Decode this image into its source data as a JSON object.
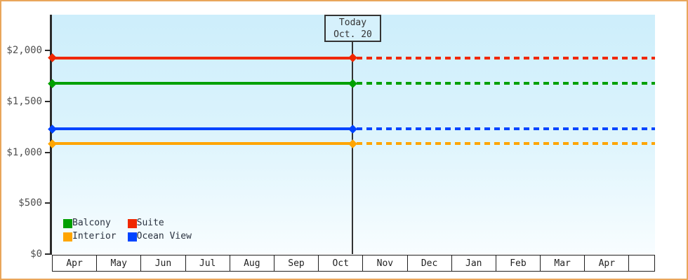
{
  "colors": {
    "frame_border": "#e9a65b",
    "plot_bg_top": "#cdeefb",
    "plot_bg_bottom": "#f8fdff",
    "axis": "#2b2b2b",
    "today_marker": "#333333"
  },
  "chart_data": {
    "type": "line",
    "title": "",
    "description": "Cabin price lines over months; solid segments before today, dashed segments after today",
    "x_axis": {
      "categories": [
        "Apr",
        "May",
        "Jun",
        "Jul",
        "Aug",
        "Sep",
        "Oct",
        "Nov",
        "Dec",
        "Jan",
        "Feb",
        "Mar",
        "Apr"
      ]
    },
    "y_axis": {
      "ticks": [
        {
          "label": "$0",
          "value": 0
        },
        {
          "label": "$500",
          "value": 500
        },
        {
          "label": "$1,000",
          "value": 1000
        },
        {
          "label": "$1,500",
          "value": 1500
        },
        {
          "label": "$2,000",
          "value": 2000
        }
      ],
      "ylim": [
        0,
        2350
      ]
    },
    "series": [
      {
        "name": "Suite",
        "color": "#f02800",
        "value": 1925
      },
      {
        "name": "Balcony",
        "color": "#00a000",
        "value": 1675
      },
      {
        "name": "Ocean View",
        "color": "#0044ff",
        "value": 1230
      },
      {
        "name": "Interior",
        "color": "#ffa500",
        "value": 1085
      }
    ],
    "line_style_before_today": "solid",
    "line_style_after_today": "dashed",
    "legend_order": [
      "Balcony",
      "Suite",
      "Interior",
      "Ocean View"
    ],
    "legend_position": "bottom-left",
    "grid": false,
    "today_box": {
      "line1": "Today",
      "line2": "Oct. 20"
    }
  }
}
